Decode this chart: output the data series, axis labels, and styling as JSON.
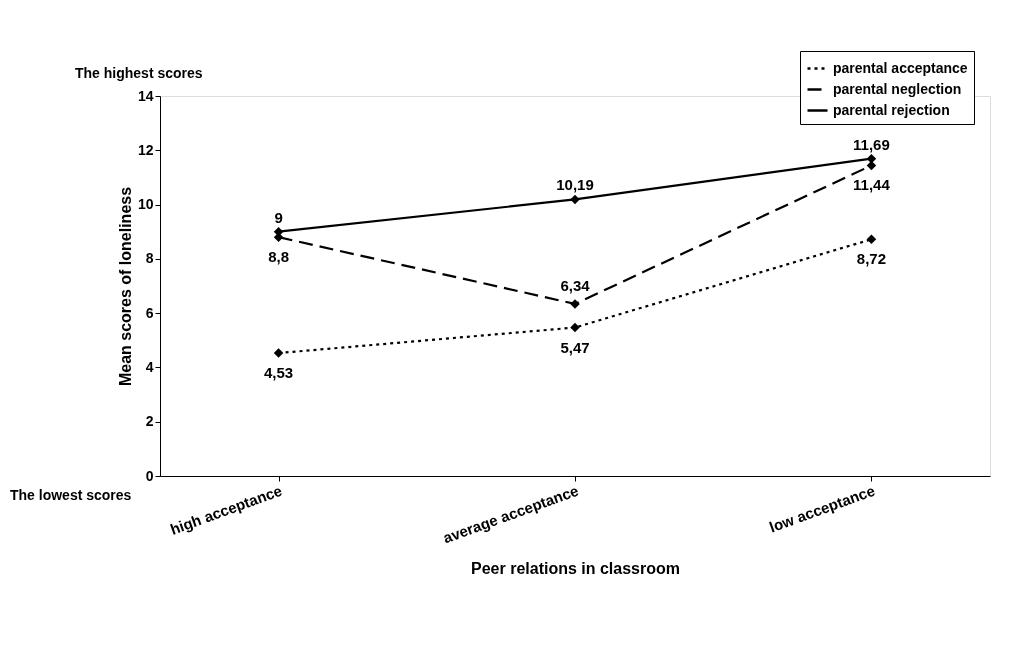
{
  "chart_data": {
    "type": "line",
    "xlabel": "Peer relations in classroom",
    "ylabel": "Mean scores of loneliness",
    "categories": [
      "high acceptance",
      "average acceptance",
      "low acceptance"
    ],
    "series": [
      {
        "name": "parental acceptance",
        "color": "#000000",
        "line_style": "dotted",
        "values": [
          4.53,
          5.47,
          8.72
        ],
        "value_labels": [
          "4,53",
          "5,47",
          "8,72"
        ]
      },
      {
        "name": "parental neglection",
        "color": "#000000",
        "line_style": "dashed",
        "values": [
          8.8,
          6.34,
          11.44
        ],
        "value_labels": [
          "8,8",
          "6,34",
          "11,44"
        ]
      },
      {
        "name": "parental rejection",
        "color": "#000000",
        "line_style": "solid",
        "values": [
          9,
          10.19,
          11.69
        ],
        "value_labels": [
          "9",
          "10,19",
          "11,69"
        ]
      }
    ],
    "ylim": [
      0,
      14
    ],
    "yticks": [
      0,
      2,
      4,
      6,
      8,
      10,
      12,
      14
    ],
    "grid": false,
    "legend": "top right",
    "marker": "diamond",
    "annotations": [
      "The highest scores",
      "The lowest scores"
    ]
  }
}
